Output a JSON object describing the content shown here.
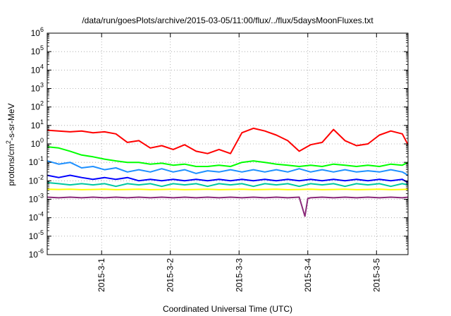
{
  "chart_data": {
    "type": "line",
    "title": "/data/run/goesPlots/archive/2015-03-05/11:00/flux/../flux/5daysMoonFluxes.txt",
    "xlabel": "Coordinated Universal Time (UTC)",
    "ylabel": {
      "base": "protons/cm",
      "sup": "2",
      "rest": "-s-sr-MeV"
    },
    "x_scale": "time",
    "x_range": [
      "2015-02-28T05:00",
      "2015-03-05T11:00"
    ],
    "x_ticks": [
      "2015-3-1",
      "2015-3-2",
      "2015-3-3",
      "2015-3-4",
      "2015-3-5"
    ],
    "y_scale": "log",
    "y_range": [
      1e-06,
      1000000.0
    ],
    "y_ticks": [
      {
        "base": "10",
        "exp": "6"
      },
      {
        "base": "10",
        "exp": "5"
      },
      {
        "base": "10",
        "exp": "4"
      },
      {
        "base": "10",
        "exp": "3"
      },
      {
        "base": "10",
        "exp": "2"
      },
      {
        "base": "10",
        "exp": "1"
      },
      {
        "base": "10",
        "exp": "0"
      },
      {
        "base": "10",
        "exp": "-1"
      },
      {
        "base": "10",
        "exp": "-2"
      },
      {
        "base": "10",
        "exp": "-3"
      },
      {
        "base": "10",
        "exp": "-4"
      },
      {
        "base": "10",
        "exp": "-5"
      },
      {
        "base": "10",
        "exp": "-6"
      }
    ],
    "grid": true,
    "series": [
      {
        "color": "#ff0000",
        "x": [
          "2015-02-28T05:00",
          "2015-02-28T09:00",
          "2015-02-28T13:00",
          "2015-02-28T17:00",
          "2015-02-28T21:00",
          "2015-03-01T01:00",
          "2015-03-01T05:00",
          "2015-03-01T09:00",
          "2015-03-01T13:00",
          "2015-03-01T17:00",
          "2015-03-01T21:00",
          "2015-03-02T01:00",
          "2015-03-02T05:00",
          "2015-03-02T09:00",
          "2015-03-02T13:00",
          "2015-03-02T17:00",
          "2015-03-02T21:00",
          "2015-03-03T01:00",
          "2015-03-03T05:00",
          "2015-03-03T09:00",
          "2015-03-03T13:00",
          "2015-03-03T17:00",
          "2015-03-03T21:00",
          "2015-03-04T01:00",
          "2015-03-04T05:00",
          "2015-03-04T09:00",
          "2015-03-04T13:00",
          "2015-03-04T17:00",
          "2015-03-04T21:00",
          "2015-03-05T01:00",
          "2015-03-05T05:00",
          "2015-03-05T09:00",
          "2015-03-05T11:00"
        ],
        "y": [
          5.5,
          5.0,
          4.5,
          5.0,
          4.0,
          4.5,
          3.5,
          1.2,
          1.5,
          0.6,
          0.8,
          0.5,
          0.9,
          0.4,
          0.3,
          0.5,
          0.3,
          4.0,
          7.0,
          5.0,
          3.0,
          1.5,
          0.4,
          0.9,
          1.2,
          6.0,
          1.5,
          0.8,
          1.0,
          3.0,
          5.0,
          3.5,
          0.9
        ]
      },
      {
        "color": "#00ff00",
        "x": [
          "2015-02-28T05:00",
          "2015-02-28T09:00",
          "2015-02-28T13:00",
          "2015-02-28T17:00",
          "2015-02-28T21:00",
          "2015-03-01T01:00",
          "2015-03-01T05:00",
          "2015-03-01T09:00",
          "2015-03-01T13:00",
          "2015-03-01T17:00",
          "2015-03-01T21:00",
          "2015-03-02T01:00",
          "2015-03-02T05:00",
          "2015-03-02T09:00",
          "2015-03-02T13:00",
          "2015-03-02T17:00",
          "2015-03-02T21:00",
          "2015-03-03T01:00",
          "2015-03-03T05:00",
          "2015-03-03T09:00",
          "2015-03-03T13:00",
          "2015-03-03T17:00",
          "2015-03-03T21:00",
          "2015-03-04T01:00",
          "2015-03-04T05:00",
          "2015-03-04T09:00",
          "2015-03-04T13:00",
          "2015-03-04T17:00",
          "2015-03-04T21:00",
          "2015-03-05T01:00",
          "2015-03-05T05:00",
          "2015-03-05T09:00",
          "2015-03-05T11:00"
        ],
        "y": [
          0.7,
          0.6,
          0.4,
          0.25,
          0.2,
          0.15,
          0.12,
          0.1,
          0.1,
          0.08,
          0.09,
          0.07,
          0.08,
          0.06,
          0.06,
          0.07,
          0.06,
          0.1,
          0.12,
          0.1,
          0.08,
          0.07,
          0.06,
          0.07,
          0.06,
          0.08,
          0.07,
          0.06,
          0.07,
          0.06,
          0.08,
          0.07,
          0.1
        ]
      },
      {
        "color": "#1e90ff",
        "x": [
          "2015-02-28T05:00",
          "2015-02-28T09:00",
          "2015-02-28T13:00",
          "2015-02-28T17:00",
          "2015-02-28T21:00",
          "2015-03-01T01:00",
          "2015-03-01T05:00",
          "2015-03-01T09:00",
          "2015-03-01T13:00",
          "2015-03-01T17:00",
          "2015-03-01T21:00",
          "2015-03-02T01:00",
          "2015-03-02T05:00",
          "2015-03-02T09:00",
          "2015-03-02T13:00",
          "2015-03-02T17:00",
          "2015-03-02T21:00",
          "2015-03-03T01:00",
          "2015-03-03T05:00",
          "2015-03-03T09:00",
          "2015-03-03T13:00",
          "2015-03-03T17:00",
          "2015-03-03T21:00",
          "2015-03-04T01:00",
          "2015-03-04T05:00",
          "2015-03-04T09:00",
          "2015-03-04T13:00",
          "2015-03-04T17:00",
          "2015-03-04T21:00",
          "2015-03-05T01:00",
          "2015-03-05T05:00",
          "2015-03-05T09:00",
          "2015-03-05T11:00"
        ],
        "y": [
          0.12,
          0.08,
          0.1,
          0.05,
          0.06,
          0.04,
          0.05,
          0.03,
          0.04,
          0.03,
          0.045,
          0.03,
          0.04,
          0.025,
          0.035,
          0.03,
          0.04,
          0.03,
          0.04,
          0.03,
          0.04,
          0.03,
          0.045,
          0.03,
          0.04,
          0.03,
          0.04,
          0.03,
          0.035,
          0.03,
          0.04,
          0.03,
          0.02
        ]
      },
      {
        "color": "#0000ff",
        "x": [
          "2015-02-28T05:00",
          "2015-02-28T09:00",
          "2015-02-28T13:00",
          "2015-02-28T17:00",
          "2015-02-28T21:00",
          "2015-03-01T01:00",
          "2015-03-01T05:00",
          "2015-03-01T09:00",
          "2015-03-01T13:00",
          "2015-03-01T17:00",
          "2015-03-01T21:00",
          "2015-03-02T01:00",
          "2015-03-02T05:00",
          "2015-03-02T09:00",
          "2015-03-02T13:00",
          "2015-03-02T17:00",
          "2015-03-02T21:00",
          "2015-03-03T01:00",
          "2015-03-03T05:00",
          "2015-03-03T09:00",
          "2015-03-03T13:00",
          "2015-03-03T17:00",
          "2015-03-03T21:00",
          "2015-03-04T01:00",
          "2015-03-04T05:00",
          "2015-03-04T09:00",
          "2015-03-04T13:00",
          "2015-03-04T17:00",
          "2015-03-04T21:00",
          "2015-03-05T01:00",
          "2015-03-05T05:00",
          "2015-03-05T09:00",
          "2015-03-05T11:00"
        ],
        "y": [
          0.02,
          0.015,
          0.02,
          0.015,
          0.012,
          0.015,
          0.012,
          0.015,
          0.01,
          0.012,
          0.01,
          0.012,
          0.01,
          0.012,
          0.01,
          0.012,
          0.01,
          0.012,
          0.01,
          0.012,
          0.01,
          0.012,
          0.01,
          0.012,
          0.01,
          0.012,
          0.01,
          0.012,
          0.01,
          0.012,
          0.01,
          0.012,
          0.008
        ]
      },
      {
        "color": "#00c8a0",
        "x": [
          "2015-02-28T05:00",
          "2015-02-28T09:00",
          "2015-02-28T13:00",
          "2015-02-28T17:00",
          "2015-02-28T21:00",
          "2015-03-01T01:00",
          "2015-03-01T05:00",
          "2015-03-01T09:00",
          "2015-03-01T13:00",
          "2015-03-01T17:00",
          "2015-03-01T21:00",
          "2015-03-02T01:00",
          "2015-03-02T05:00",
          "2015-03-02T09:00",
          "2015-03-02T13:00",
          "2015-03-02T17:00",
          "2015-03-02T21:00",
          "2015-03-03T01:00",
          "2015-03-03T05:00",
          "2015-03-03T09:00",
          "2015-03-03T13:00",
          "2015-03-03T17:00",
          "2015-03-03T21:00",
          "2015-03-04T01:00",
          "2015-03-04T05:00",
          "2015-03-04T09:00",
          "2015-03-04T13:00",
          "2015-03-04T17:00",
          "2015-03-04T21:00",
          "2015-03-05T01:00",
          "2015-03-05T05:00",
          "2015-03-05T09:00",
          "2015-03-05T11:00"
        ],
        "y": [
          0.008,
          0.007,
          0.006,
          0.007,
          0.006,
          0.007,
          0.005,
          0.007,
          0.006,
          0.007,
          0.005,
          0.007,
          0.006,
          0.007,
          0.005,
          0.007,
          0.006,
          0.007,
          0.005,
          0.007,
          0.006,
          0.007,
          0.005,
          0.007,
          0.006,
          0.007,
          0.005,
          0.007,
          0.006,
          0.007,
          0.005,
          0.007,
          0.006
        ]
      },
      {
        "color": "#ffff00",
        "x": [
          "2015-02-28T05:00",
          "2015-02-28T09:00",
          "2015-02-28T13:00",
          "2015-02-28T17:00",
          "2015-02-28T21:00",
          "2015-03-01T01:00",
          "2015-03-01T05:00",
          "2015-03-01T09:00",
          "2015-03-01T13:00",
          "2015-03-01T17:00",
          "2015-03-01T21:00",
          "2015-03-02T01:00",
          "2015-03-02T05:00",
          "2015-03-02T09:00",
          "2015-03-02T13:00",
          "2015-03-02T17:00",
          "2015-03-02T21:00",
          "2015-03-03T01:00",
          "2015-03-03T05:00",
          "2015-03-03T09:00",
          "2015-03-03T13:00",
          "2015-03-03T17:00",
          "2015-03-03T21:00",
          "2015-03-04T01:00",
          "2015-03-04T05:00",
          "2015-03-04T09:00",
          "2015-03-04T13:00",
          "2015-03-04T17:00",
          "2015-03-04T21:00",
          "2015-03-05T01:00",
          "2015-03-05T05:00",
          "2015-03-05T09:00",
          "2015-03-05T11:00"
        ],
        "y": [
          0.0035,
          0.0034,
          0.0035,
          0.0033,
          0.0034,
          0.0035,
          0.0033,
          0.0034,
          0.0035,
          0.0033,
          0.0034,
          0.0035,
          0.0033,
          0.0034,
          0.0035,
          0.0033,
          0.0034,
          0.0035,
          0.0033,
          0.0034,
          0.0035,
          0.0033,
          0.0034,
          0.0035,
          0.0033,
          0.0034,
          0.0035,
          0.0033,
          0.0034,
          0.0035,
          0.0033,
          0.0034,
          0.0035
        ]
      },
      {
        "color": "#8b2a7a",
        "x": [
          "2015-02-28T05:00",
          "2015-02-28T09:00",
          "2015-02-28T13:00",
          "2015-02-28T17:00",
          "2015-02-28T21:00",
          "2015-03-01T01:00",
          "2015-03-01T05:00",
          "2015-03-01T09:00",
          "2015-03-01T13:00",
          "2015-03-01T17:00",
          "2015-03-01T21:00",
          "2015-03-02T01:00",
          "2015-03-02T05:00",
          "2015-03-02T09:00",
          "2015-03-02T13:00",
          "2015-03-02T17:00",
          "2015-03-02T21:00",
          "2015-03-03T01:00",
          "2015-03-03T05:00",
          "2015-03-03T09:00",
          "2015-03-03T13:00",
          "2015-03-03T17:00",
          "2015-03-03T21:00",
          "2015-03-03T23:00",
          "2015-03-04T00:00",
          "2015-03-04T01:00",
          "2015-03-04T05:00",
          "2015-03-04T09:00",
          "2015-03-04T13:00",
          "2015-03-04T17:00",
          "2015-03-04T21:00",
          "2015-03-05T01:00",
          "2015-03-05T05:00",
          "2015-03-05T09:00",
          "2015-03-05T11:00"
        ],
        "y": [
          0.0013,
          0.0012,
          0.0013,
          0.0012,
          0.0013,
          0.0012,
          0.0013,
          0.0012,
          0.0013,
          0.0012,
          0.0013,
          0.0012,
          0.0013,
          0.0012,
          0.0013,
          0.0012,
          0.0013,
          0.0012,
          0.0013,
          0.0012,
          0.0013,
          0.0012,
          0.0013,
          0.00012,
          0.0011,
          0.0012,
          0.0013,
          0.0012,
          0.0013,
          0.0012,
          0.0013,
          0.0012,
          0.0013,
          0.0012,
          0.0013
        ]
      }
    ]
  }
}
